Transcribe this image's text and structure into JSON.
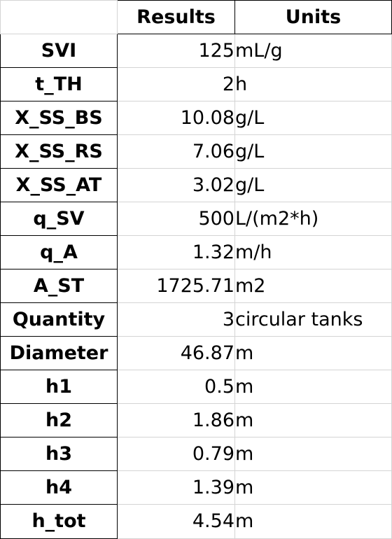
{
  "table": {
    "headers": {
      "blank": "",
      "results": "Results",
      "units": "Units"
    },
    "rows": [
      {
        "name": "SVI",
        "value": "125",
        "unit": "mL/g"
      },
      {
        "name": "t_TH",
        "value": "2",
        "unit": "h"
      },
      {
        "name": "X_SS_BS",
        "value": "10.08",
        "unit": "g/L"
      },
      {
        "name": "X_SS_RS",
        "value": "7.06",
        "unit": "g/L"
      },
      {
        "name": "X_SS_AT",
        "value": "3.02",
        "unit": "g/L"
      },
      {
        "name": "q_SV",
        "value": "500",
        "unit": "L/(m2*h)"
      },
      {
        "name": "q_A",
        "value": "1.32",
        "unit": "m/h"
      },
      {
        "name": "A_ST",
        "value": "1725.71",
        "unit": "m2"
      },
      {
        "name": "Quantity",
        "value": "3",
        "unit": "circular tanks"
      },
      {
        "name": "Diameter",
        "value": "46.87",
        "unit": "m"
      },
      {
        "name": "h1",
        "value": "0.5",
        "unit": "m"
      },
      {
        "name": "h2",
        "value": "1.86",
        "unit": "m"
      },
      {
        "name": "h3",
        "value": "0.79",
        "unit": "m"
      },
      {
        "name": "h4",
        "value": "1.39",
        "unit": "m"
      },
      {
        "name": "h_tot",
        "value": "4.54",
        "unit": "m"
      }
    ]
  }
}
